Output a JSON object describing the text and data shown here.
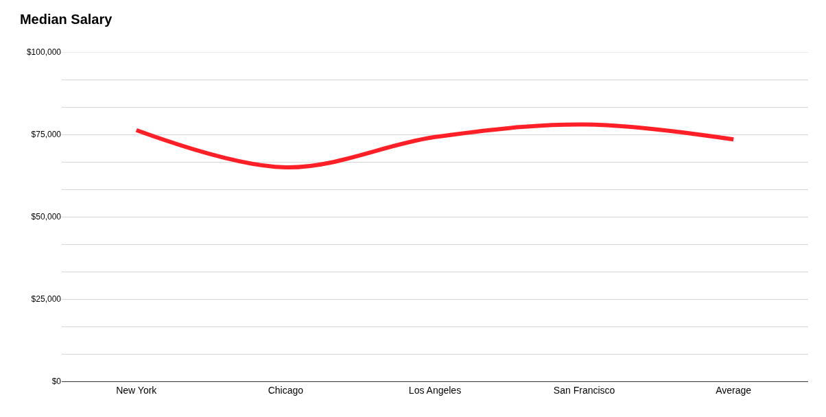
{
  "chart_data": {
    "type": "line",
    "title": "Median Salary",
    "categories": [
      "New York",
      "Chicago",
      "Los Angeles",
      "San Francisco",
      "Average"
    ],
    "series": [
      {
        "color": "#ff1f26",
        "values": [
          76300,
          65000,
          74200,
          78000,
          73500
        ]
      }
    ],
    "ylim": [
      0,
      100000
    ],
    "yticks": [
      {
        "value": 0,
        "label": "$0"
      },
      {
        "value": 8333,
        "label": null
      },
      {
        "value": 16667,
        "label": null
      },
      {
        "value": 25000,
        "label": "$25,000"
      },
      {
        "value": 33333,
        "label": null
      },
      {
        "value": 41667,
        "label": null
      },
      {
        "value": 50000,
        "label": "$50,000"
      },
      {
        "value": 58333,
        "label": null
      },
      {
        "value": 66667,
        "label": null
      },
      {
        "value": 75000,
        "label": "$75,000"
      },
      {
        "value": 83333,
        "label": null
      },
      {
        "value": 91667,
        "label": null
      },
      {
        "value": 100000,
        "label": "$100,000"
      }
    ],
    "grid": "y",
    "marker": "none",
    "line_style": "solid"
  }
}
